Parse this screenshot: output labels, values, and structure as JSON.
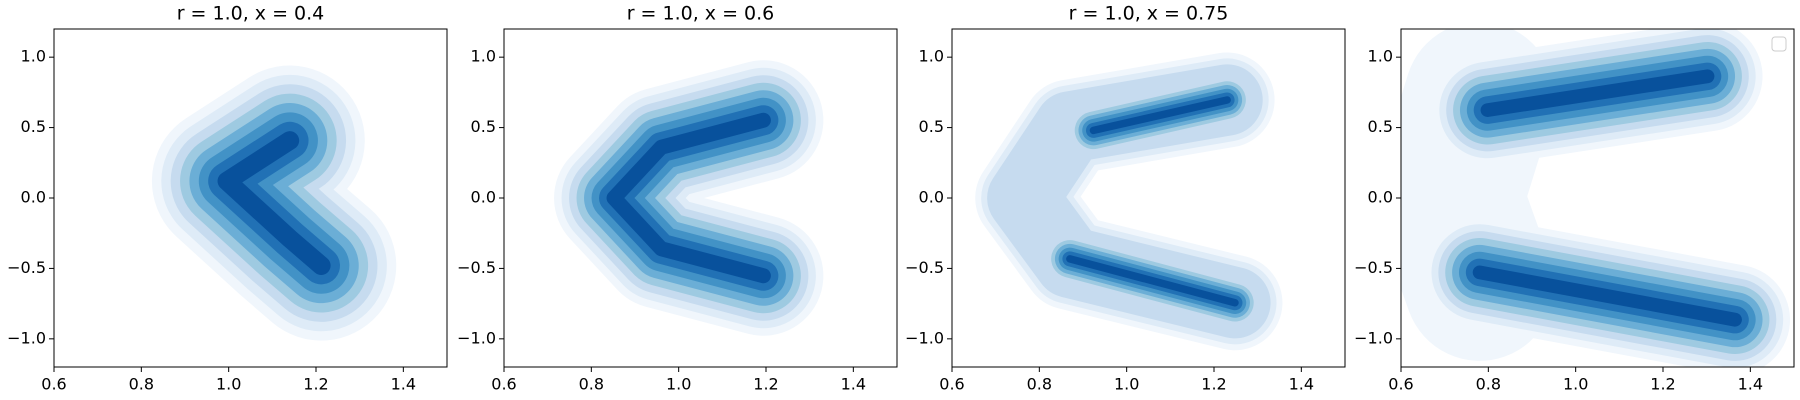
{
  "chart_data": [
    {
      "type": "kde",
      "title": "r = 1.0, x = 0.4",
      "xlim": [
        0.6,
        1.5
      ],
      "xticks": [
        0.6,
        0.8,
        {
          "value": 1.0,
          "label": "1.0"
        },
        1.2,
        1.4
      ],
      "ylim": [
        -1.2,
        1.2
      ],
      "yticks": [
        {
          "value": -1.0,
          "label": "−1.0"
        },
        {
          "value": -0.5,
          "label": "−0.5"
        },
        {
          "value": 0.0,
          "label": "0.0"
        },
        0.5,
        {
          "value": 1.0,
          "label": "1.0"
        }
      ],
      "color": "#08519c"
    },
    {
      "type": "kde",
      "title": "r = 1.0, x = 0.6",
      "xlim": [
        0.6,
        1.5
      ],
      "xticks": [
        0.6,
        0.8,
        {
          "value": 1.0,
          "label": "1.0"
        },
        1.2,
        1.4
      ],
      "ylim": [
        -1.2,
        1.2
      ],
      "yticks": [
        {
          "value": -1.0,
          "label": "−1.0"
        },
        {
          "value": -0.5,
          "label": "−0.5"
        },
        {
          "value": 0.0,
          "label": "0.0"
        },
        0.5,
        {
          "value": 1.0,
          "label": "1.0"
        }
      ],
      "color": "#08519c"
    },
    {
      "type": "kde",
      "title": "r = 1.0, x = 0.75",
      "xlim": [
        0.6,
        1.5
      ],
      "xticks": [
        0.6,
        0.8,
        {
          "value": 1.0,
          "label": "1.0"
        },
        1.2,
        1.4
      ],
      "ylim": [
        -1.2,
        1.2
      ],
      "yticks": [
        {
          "value": -1.0,
          "label": "−1.0"
        },
        {
          "value": -0.5,
          "label": "−0.5"
        },
        {
          "value": 0.0,
          "label": "0.0"
        },
        0.5,
        {
          "value": 1.0,
          "label": "1.0"
        }
      ],
      "color": "#08519c"
    },
    {
      "type": "kde",
      "xlim": [
        0.6,
        1.5
      ],
      "xticks": [
        0.6,
        0.8,
        {
          "value": 1.0,
          "label": "1.0"
        },
        1.2,
        1.4
      ],
      "ylim": [
        -1.2,
        1.2
      ],
      "yticks": [
        {
          "value": -1.0,
          "label": "−1.0"
        },
        {
          "value": -0.5,
          "label": "−0.5"
        },
        {
          "value": 0.0,
          "label": "0.0"
        },
        0.5,
        {
          "value": 1.0,
          "label": "1.0"
        }
      ],
      "color": "#08519c",
      "legend": "upper right"
    }
  ]
}
